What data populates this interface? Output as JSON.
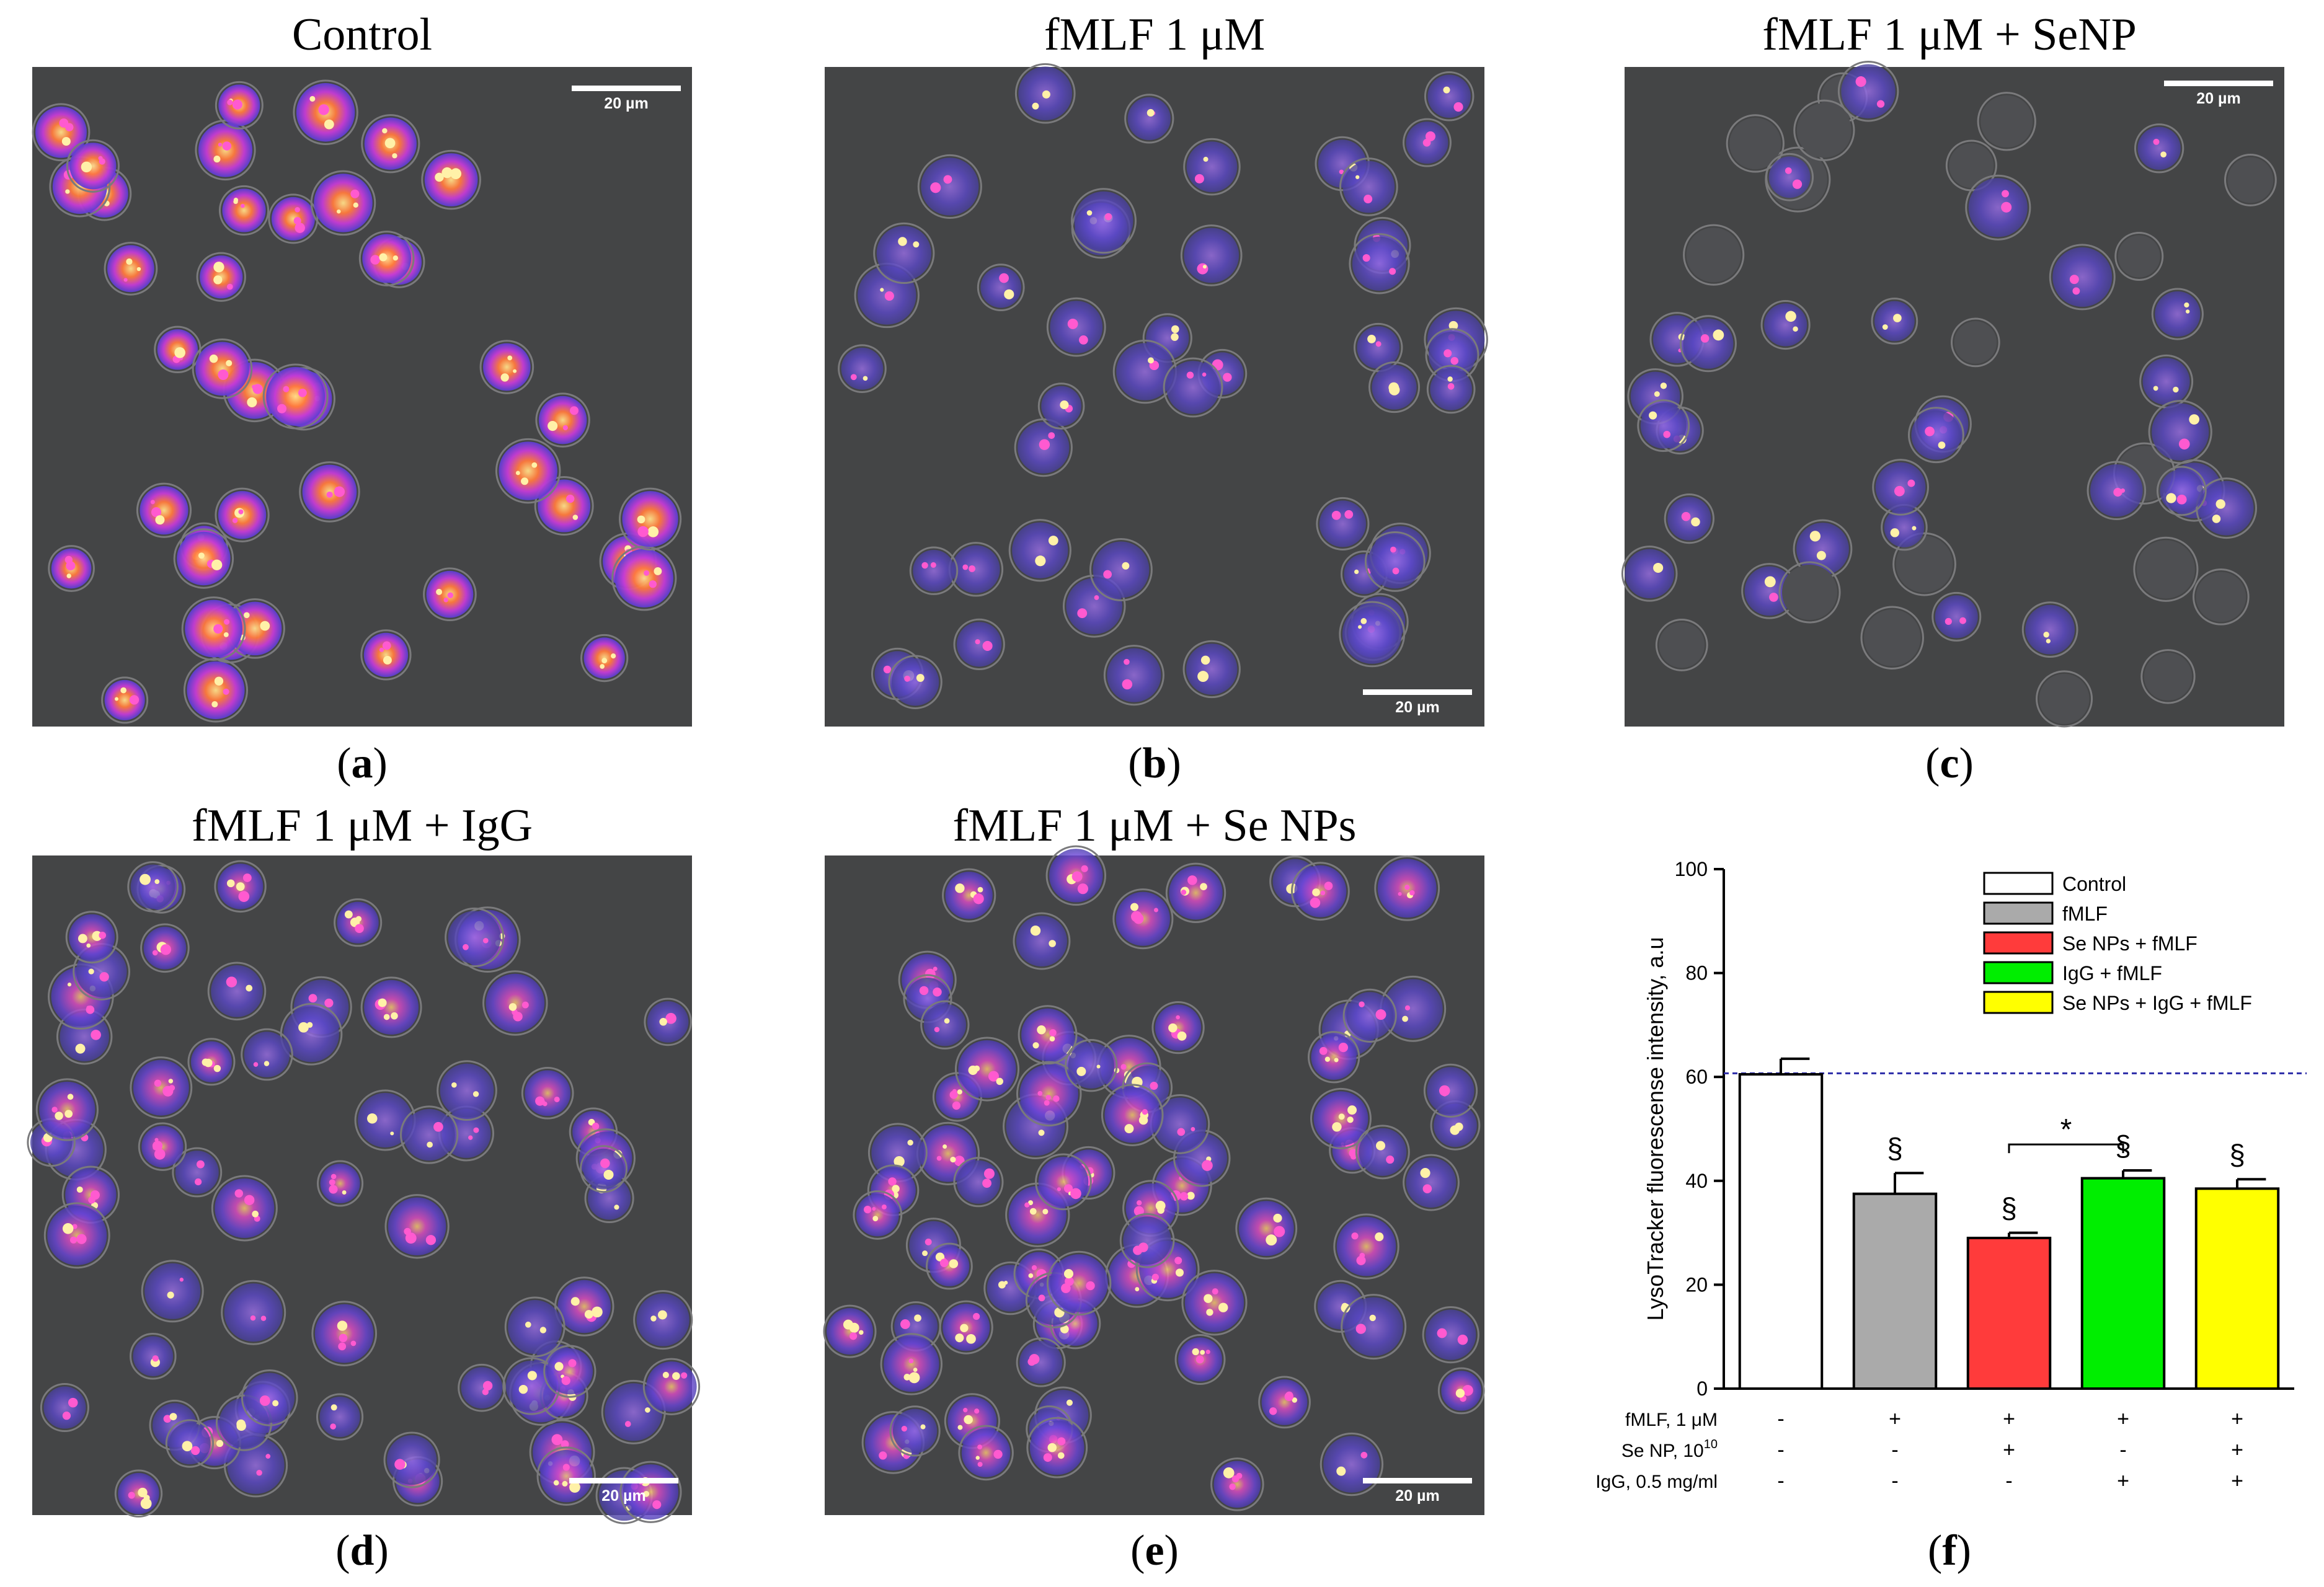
{
  "panels": [
    {
      "id": "a",
      "title": "Control",
      "letter": "a",
      "scalebar": "20 µm",
      "scalebar_pos": "top-right",
      "cells": "bright"
    },
    {
      "id": "b",
      "title": "fMLF 1 μM",
      "letter": "b",
      "scalebar": "20 µm",
      "scalebar_pos": "bottom-right",
      "cells": "dim"
    },
    {
      "id": "c",
      "title": "fMLF 1 μM + SeNP",
      "letter": "c",
      "scalebar": "20 µm",
      "scalebar_pos": "top-right",
      "cells": "sparse"
    },
    {
      "id": "d",
      "title": "fMLF 1 μM + IgG",
      "letter": "d",
      "scalebar": "20 µm",
      "scalebar_pos": "bottom-right",
      "cells": "dense"
    },
    {
      "id": "e",
      "title": "fMLF 1 μM + Se NPs",
      "letter": "e",
      "scalebar": "20 µm",
      "scalebar_pos": "bottom-right",
      "cells": "dense"
    }
  ],
  "chart_letter": "f",
  "chart_data": {
    "type": "bar",
    "ylabel": "LysoTracker fluorescense intensity, a.u",
    "ylim": [
      0,
      100
    ],
    "yticks": [
      0,
      20,
      40,
      60,
      80,
      100
    ],
    "categories": [
      "Control",
      "fMLF",
      "Se NPs + fMLF",
      "IgG + fMLF",
      "Se NPs + IgG + fMLF"
    ],
    "values": [
      60.5,
      37.5,
      29,
      40.5,
      38.5
    ],
    "errors": [
      3,
      4,
      1,
      1.5,
      1.8
    ],
    "colors": [
      "#ffffff",
      "#aaaaaa",
      "#ff3b3b",
      "#00ee00",
      "#ffff00"
    ],
    "reference_line": 60.7,
    "significance_marks": [
      "",
      "§",
      "§",
      "§",
      "§"
    ],
    "bracket": {
      "from": 2,
      "to": 3,
      "label": "*"
    },
    "legend": [
      "Control",
      "fMLF",
      "Se NPs + fMLF",
      "IgG + fMLF",
      "Se NPs + IgG + fMLF"
    ],
    "legend_position": "top-right",
    "treatment_rows": [
      {
        "label": "fMLF, 1 μM",
        "signs": [
          "-",
          "+",
          "+",
          "+",
          "+"
        ]
      },
      {
        "label": "Se NP, 10",
        "sup": "10",
        "signs": [
          "-",
          "-",
          "+",
          "-",
          "+"
        ]
      },
      {
        "label": "IgG, 0.5 mg/ml",
        "signs": [
          "-",
          "-",
          "-",
          "+",
          "+"
        ]
      }
    ]
  }
}
